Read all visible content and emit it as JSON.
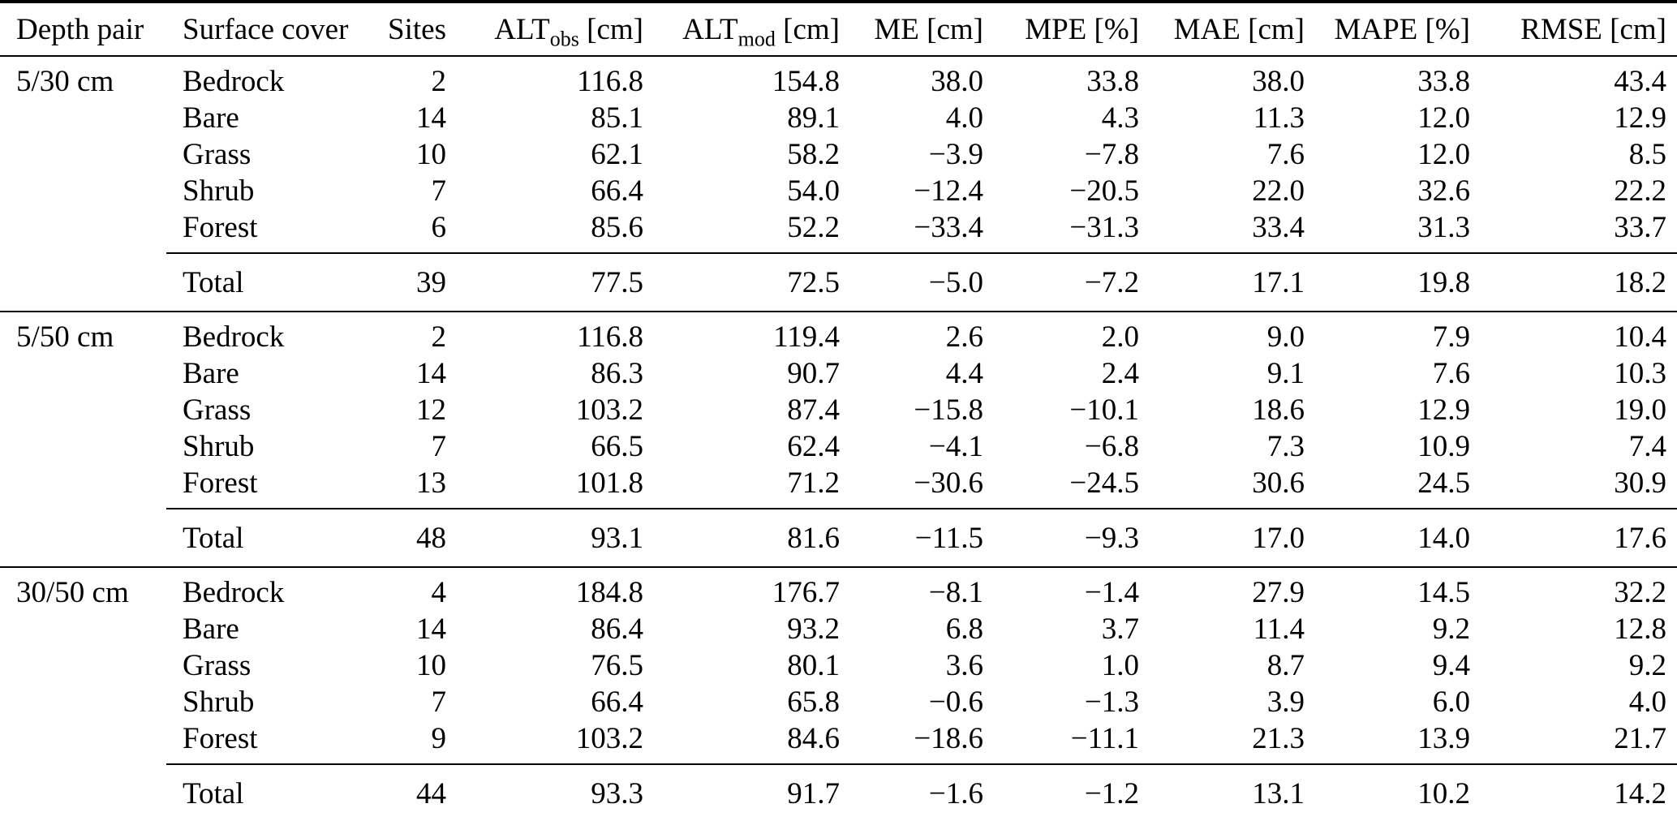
{
  "table": {
    "columns": [
      {
        "main": "Depth pair",
        "sub": "",
        "unit": ""
      },
      {
        "main": "Surface cover",
        "sub": "",
        "unit": ""
      },
      {
        "main": "Sites",
        "sub": "",
        "unit": ""
      },
      {
        "main": "ALT",
        "sub": "obs",
        "unit": " [cm]"
      },
      {
        "main": "ALT",
        "sub": "mod",
        "unit": " [cm]"
      },
      {
        "main": "ME [cm]",
        "sub": "",
        "unit": ""
      },
      {
        "main": "MPE [%]",
        "sub": "",
        "unit": ""
      },
      {
        "main": "MAE [cm]",
        "sub": "",
        "unit": ""
      },
      {
        "main": "MAPE [%]",
        "sub": "",
        "unit": ""
      },
      {
        "main": "RMSE [cm]",
        "sub": "",
        "unit": ""
      }
    ],
    "groups": [
      {
        "depth_pair": "5/30 cm",
        "rows": [
          {
            "cover": "Bedrock",
            "values": [
              "2",
              "116.8",
              "154.8",
              "38.0",
              "33.8",
              "38.0",
              "33.8",
              "43.4"
            ]
          },
          {
            "cover": "Bare",
            "values": [
              "14",
              "85.1",
              "89.1",
              "4.0",
              "4.3",
              "11.3",
              "12.0",
              "12.9"
            ]
          },
          {
            "cover": "Grass",
            "values": [
              "10",
              "62.1",
              "58.2",
              "−3.9",
              "−7.8",
              "7.6",
              "12.0",
              "8.5"
            ]
          },
          {
            "cover": "Shrub",
            "values": [
              "7",
              "66.4",
              "54.0",
              "−12.4",
              "−20.5",
              "22.0",
              "32.6",
              "22.2"
            ]
          },
          {
            "cover": "Forest",
            "values": [
              "6",
              "85.6",
              "52.2",
              "−33.4",
              "−31.3",
              "33.4",
              "31.3",
              "33.7"
            ]
          }
        ],
        "total": {
          "label": "Total",
          "values": [
            "39",
            "77.5",
            "72.5",
            "−5.0",
            "−7.2",
            "17.1",
            "19.8",
            "18.2"
          ]
        }
      },
      {
        "depth_pair": "5/50 cm",
        "rows": [
          {
            "cover": "Bedrock",
            "values": [
              "2",
              "116.8",
              "119.4",
              "2.6",
              "2.0",
              "9.0",
              "7.9",
              "10.4"
            ]
          },
          {
            "cover": "Bare",
            "values": [
              "14",
              "86.3",
              "90.7",
              "4.4",
              "2.4",
              "9.1",
              "7.6",
              "10.3"
            ]
          },
          {
            "cover": "Grass",
            "values": [
              "12",
              "103.2",
              "87.4",
              "−15.8",
              "−10.1",
              "18.6",
              "12.9",
              "19.0"
            ]
          },
          {
            "cover": "Shrub",
            "values": [
              "7",
              "66.5",
              "62.4",
              "−4.1",
              "−6.8",
              "7.3",
              "10.9",
              "7.4"
            ]
          },
          {
            "cover": "Forest",
            "values": [
              "13",
              "101.8",
              "71.2",
              "−30.6",
              "−24.5",
              "30.6",
              "24.5",
              "30.9"
            ]
          }
        ],
        "total": {
          "label": "Total",
          "values": [
            "48",
            "93.1",
            "81.6",
            "−11.5",
            "−9.3",
            "17.0",
            "14.0",
            "17.6"
          ]
        }
      },
      {
        "depth_pair": "30/50 cm",
        "rows": [
          {
            "cover": "Bedrock",
            "values": [
              "4",
              "184.8",
              "176.7",
              "−8.1",
              "−1.4",
              "27.9",
              "14.5",
              "32.2"
            ]
          },
          {
            "cover": "Bare",
            "values": [
              "14",
              "86.4",
              "93.2",
              "6.8",
              "3.7",
              "11.4",
              "9.2",
              "12.8"
            ]
          },
          {
            "cover": "Grass",
            "values": [
              "10",
              "76.5",
              "80.1",
              "3.6",
              "1.0",
              "8.7",
              "9.4",
              "9.2"
            ]
          },
          {
            "cover": "Shrub",
            "values": [
              "7",
              "66.4",
              "65.8",
              "−0.6",
              "−1.3",
              "3.9",
              "6.0",
              "4.0"
            ]
          },
          {
            "cover": "Forest",
            "values": [
              "9",
              "103.2",
              "84.6",
              "−18.6",
              "−11.1",
              "21.3",
              "13.9",
              "21.7"
            ]
          }
        ],
        "total": {
          "label": "Total",
          "values": [
            "44",
            "93.3",
            "91.7",
            "−1.6",
            "−1.2",
            "13.1",
            "10.2",
            "14.2"
          ]
        }
      }
    ]
  }
}
